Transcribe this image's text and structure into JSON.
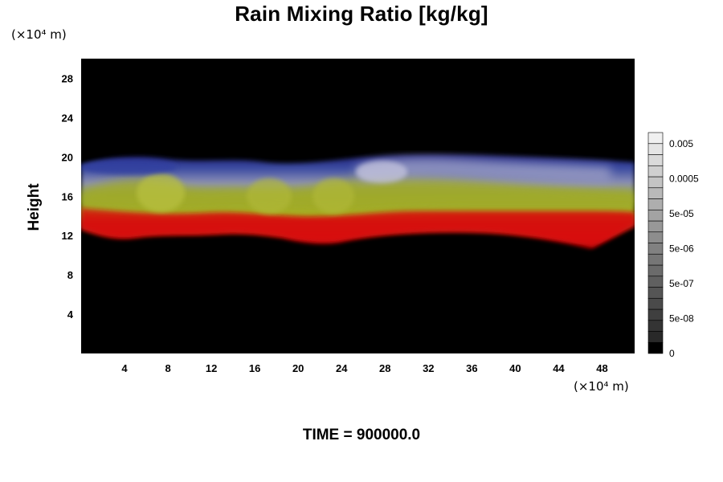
{
  "chart_data": {
    "type": "heatmap",
    "title": "Rain Mixing Ratio [kg/kg]",
    "ylabel": "Height",
    "y_unit": "(×10⁴ m)",
    "x_unit": "(×10⁴ m)",
    "x_ticks": [
      4,
      8,
      12,
      16,
      20,
      24,
      28,
      32,
      36,
      40,
      44,
      48
    ],
    "y_ticks": [
      4,
      8,
      12,
      16,
      20,
      24,
      28
    ],
    "xlim": [
      0,
      51
    ],
    "ylim": [
      0,
      30
    ],
    "colorbar_labels": [
      "0.005",
      "0.0005",
      "5e-05",
      "5e-06",
      "5e-07",
      "5e-08",
      "0"
    ],
    "colorbar_levels": 20,
    "background_color": "#000000",
    "band_colors": [
      "#d01010",
      "#a8b028",
      "#7880b0",
      "#2a2a90"
    ],
    "footer": "TIME = 900000.0"
  }
}
